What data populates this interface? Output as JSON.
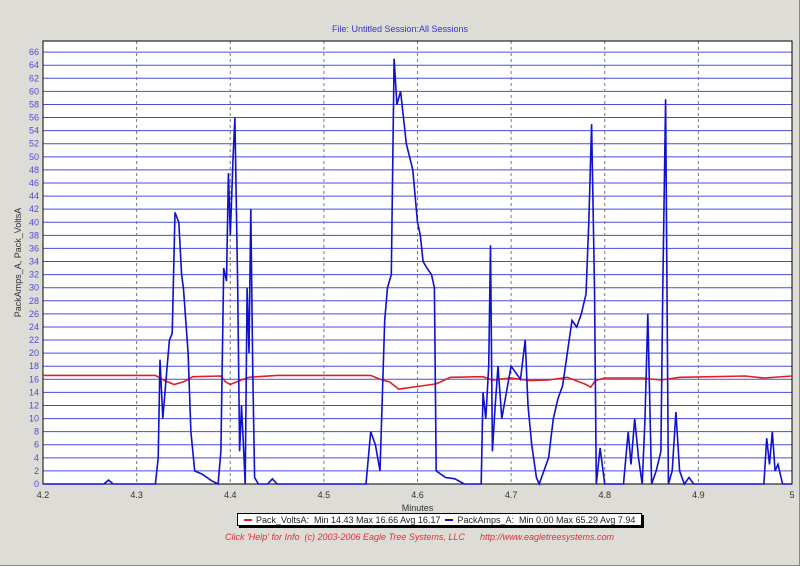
{
  "header": {
    "title": "File: Untitled   Session:All Sessions"
  },
  "footer": {
    "help": "Click 'Help' for Info  (c) 2003-2006 Eagle Tree Systems, LLC",
    "url": "http://www.eagletreesystems.com"
  },
  "colors": {
    "volts": "#e02020",
    "amps": "#1010d0",
    "grid": "#4a4ae0",
    "tick": "#4a4ae0"
  },
  "chart_data": {
    "type": "line",
    "title": "File: Untitled   Session:All Sessions",
    "xlabel": "Minutes",
    "ylabel": "PackAmps_A, Pack_VoltsA",
    "xlim": [
      4.2,
      5.0
    ],
    "ylim": [
      0,
      67.7
    ],
    "xticks": [
      "4.2",
      "4.3",
      "4.4",
      "4.5",
      "4.6",
      "4.7",
      "4.8",
      "4.9",
      "5"
    ],
    "yticks": [
      "0",
      "2",
      "4",
      "6",
      "8",
      "10",
      "12",
      "14",
      "16",
      "18",
      "20",
      "22",
      "24",
      "26",
      "28",
      "30",
      "32",
      "34",
      "36",
      "38",
      "40",
      "42",
      "44",
      "46",
      "48",
      "50",
      "52",
      "54",
      "56",
      "58",
      "60",
      "62",
      "64",
      "66"
    ],
    "grid": true,
    "legend_position": "bottom",
    "series": [
      {
        "name": "Pack_VoltsA",
        "legend": "Pack_VoltsA:  Min 14.43 Max 16.66 Avg 16.17",
        "color": "#e02020",
        "points": [
          [
            4.2,
            16.6
          ],
          [
            4.32,
            16.6
          ],
          [
            4.33,
            15.8
          ],
          [
            4.34,
            15.2
          ],
          [
            4.35,
            15.6
          ],
          [
            4.36,
            16.4
          ],
          [
            4.39,
            16.5
          ],
          [
            4.395,
            15.6
          ],
          [
            4.4,
            15.2
          ],
          [
            4.41,
            15.8
          ],
          [
            4.42,
            16.3
          ],
          [
            4.45,
            16.6
          ],
          [
            4.55,
            16.6
          ],
          [
            4.56,
            16.0
          ],
          [
            4.57,
            15.6
          ],
          [
            4.58,
            14.5
          ],
          [
            4.6,
            14.9
          ],
          [
            4.62,
            15.3
          ],
          [
            4.635,
            16.3
          ],
          [
            4.67,
            16.4
          ],
          [
            4.68,
            15.9
          ],
          [
            4.7,
            16.2
          ],
          [
            4.72,
            15.8
          ],
          [
            4.74,
            15.9
          ],
          [
            4.76,
            16.3
          ],
          [
            4.78,
            15.2
          ],
          [
            4.785,
            14.8
          ],
          [
            4.79,
            15.8
          ],
          [
            4.8,
            16.2
          ],
          [
            4.84,
            16.2
          ],
          [
            4.86,
            15.9
          ],
          [
            4.88,
            16.3
          ],
          [
            4.95,
            16.5
          ],
          [
            4.97,
            16.2
          ],
          [
            5.0,
            16.5
          ]
        ]
      },
      {
        "name": "PackAmps_A",
        "legend": "PackAmps_A:  Min 0.00 Max 65.29 Avg 7.94",
        "color": "#1010d0",
        "points": [
          [
            4.2,
            0
          ],
          [
            4.265,
            0
          ],
          [
            4.27,
            0.6
          ],
          [
            4.275,
            0
          ],
          [
            4.32,
            0
          ],
          [
            4.323,
            4
          ],
          [
            4.325,
            19
          ],
          [
            4.328,
            10
          ],
          [
            4.332,
            17
          ],
          [
            4.335,
            22
          ],
          [
            4.338,
            23
          ],
          [
            4.341,
            41.5
          ],
          [
            4.345,
            40
          ],
          [
            4.348,
            32
          ],
          [
            4.35,
            30
          ],
          [
            4.355,
            20
          ],
          [
            4.358,
            8
          ],
          [
            4.362,
            2
          ],
          [
            4.37,
            1.5
          ],
          [
            4.38,
            0.5
          ],
          [
            4.387,
            0
          ],
          [
            4.39,
            5
          ],
          [
            4.393,
            33
          ],
          [
            4.396,
            31
          ],
          [
            4.398,
            47.5
          ],
          [
            4.4,
            38
          ],
          [
            4.403,
            50
          ],
          [
            4.405,
            56
          ],
          [
            4.408,
            30
          ],
          [
            4.41,
            5
          ],
          [
            4.412,
            12
          ],
          [
            4.414,
            6
          ],
          [
            4.416,
            0
          ],
          [
            4.418,
            30
          ],
          [
            4.42,
            20
          ],
          [
            4.422,
            42
          ],
          [
            4.424,
            18
          ],
          [
            4.426,
            1
          ],
          [
            4.43,
            0
          ],
          [
            4.44,
            0
          ],
          [
            4.445,
            0.8
          ],
          [
            4.45,
            0
          ],
          [
            4.545,
            0
          ],
          [
            4.55,
            8
          ],
          [
            4.555,
            6
          ],
          [
            4.56,
            2
          ],
          [
            4.565,
            25
          ],
          [
            4.568,
            30
          ],
          [
            4.572,
            32
          ],
          [
            4.575,
            65
          ],
          [
            4.578,
            58
          ],
          [
            4.582,
            60
          ],
          [
            4.588,
            52
          ],
          [
            4.595,
            48
          ],
          [
            4.6,
            40
          ],
          [
            4.603,
            38
          ],
          [
            4.606,
            34
          ],
          [
            4.61,
            33
          ],
          [
            4.615,
            32
          ],
          [
            4.618,
            30
          ],
          [
            4.62,
            2
          ],
          [
            4.63,
            1
          ],
          [
            4.64,
            0.8
          ],
          [
            4.65,
            0
          ],
          [
            4.668,
            0
          ],
          [
            4.67,
            14
          ],
          [
            4.673,
            10
          ],
          [
            4.676,
            18
          ],
          [
            4.678,
            36.5
          ],
          [
            4.68,
            5
          ],
          [
            4.683,
            12
          ],
          [
            4.686,
            18
          ],
          [
            4.69,
            10
          ],
          [
            4.695,
            14
          ],
          [
            4.7,
            18
          ],
          [
            4.705,
            17
          ],
          [
            4.71,
            16
          ],
          [
            4.715,
            22
          ],
          [
            4.718,
            12
          ],
          [
            4.722,
            6
          ],
          [
            4.727,
            1
          ],
          [
            4.73,
            0
          ],
          [
            4.74,
            4
          ],
          [
            4.745,
            10
          ],
          [
            4.75,
            13
          ],
          [
            4.755,
            15
          ],
          [
            4.76,
            20
          ],
          [
            4.765,
            25
          ],
          [
            4.77,
            24
          ],
          [
            4.775,
            26
          ],
          [
            4.78,
            29
          ],
          [
            4.783,
            40
          ],
          [
            4.786,
            55
          ],
          [
            4.789,
            30
          ],
          [
            4.791,
            0
          ],
          [
            4.795,
            5.5
          ],
          [
            4.8,
            0
          ],
          [
            4.82,
            0
          ],
          [
            4.825,
            8
          ],
          [
            4.828,
            3
          ],
          [
            4.832,
            10
          ],
          [
            4.836,
            4
          ],
          [
            4.84,
            0
          ],
          [
            4.843,
            10
          ],
          [
            4.846,
            26
          ],
          [
            4.85,
            0
          ],
          [
            4.855,
            2
          ],
          [
            4.86,
            5
          ],
          [
            4.862,
            30
          ],
          [
            4.865,
            58.8
          ],
          [
            4.868,
            0
          ],
          [
            4.872,
            2
          ],
          [
            4.876,
            11
          ],
          [
            4.88,
            2
          ],
          [
            4.885,
            0
          ],
          [
            4.89,
            1
          ],
          [
            4.895,
            0
          ],
          [
            4.97,
            0
          ],
          [
            4.973,
            7
          ],
          [
            4.976,
            3
          ],
          [
            4.979,
            8
          ],
          [
            4.982,
            2
          ],
          [
            4.985,
            3
          ],
          [
            4.99,
            0
          ],
          [
            5.0,
            0
          ]
        ]
      }
    ]
  }
}
